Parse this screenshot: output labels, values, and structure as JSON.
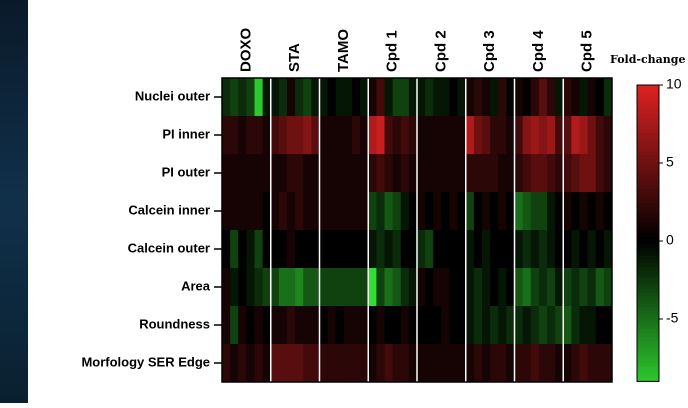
{
  "chart_data": {
    "type": "heatmap",
    "groups": [
      "DOXO",
      "STA",
      "TAMO",
      "Cpd 1",
      "Cpd 2",
      "Cpd 3",
      "Cpd 4",
      "Cpd 5"
    ],
    "rows": [
      "Nuclei outer",
      "PI inner",
      "PI outer",
      "Calcein inner",
      "Calcein outer",
      "Area",
      "Roundness",
      "Morfology SER Edge"
    ],
    "values": [
      [
        -2,
        -3,
        -2,
        -3,
        -9,
        -1,
        -1,
        -2,
        1,
        -2,
        -3,
        -1,
        -1,
        0,
        -1,
        -1,
        0,
        -1,
        1,
        3,
        -1,
        -3,
        -3,
        -1,
        -1,
        -2,
        -1,
        -1,
        0,
        -1,
        1,
        2,
        1,
        -1,
        2,
        0,
        1,
        0,
        2,
        4,
        2,
        -1,
        2,
        1,
        -1,
        1,
        0,
        -2
      ],
      [
        2,
        2,
        1,
        2,
        2,
        1,
        3,
        4,
        5,
        5,
        6,
        4,
        1,
        1,
        1,
        1,
        2,
        1,
        8,
        9,
        3,
        2,
        3,
        2,
        1,
        1,
        1,
        1,
        1,
        1,
        8,
        5,
        4,
        2,
        2,
        1,
        3,
        6,
        7,
        6,
        7,
        3,
        4,
        8,
        7,
        5,
        3,
        2
      ],
      [
        1,
        1,
        1,
        1,
        1,
        1,
        1,
        1,
        2,
        2,
        1,
        1,
        1,
        1,
        1,
        1,
        1,
        1,
        2,
        3,
        2,
        1,
        2,
        1,
        1,
        1,
        1,
        1,
        1,
        1,
        2,
        2,
        2,
        2,
        1,
        1,
        2,
        3,
        4,
        4,
        3,
        2,
        3,
        4,
        5,
        5,
        3,
        2
      ],
      [
        1,
        1,
        1,
        1,
        1,
        0,
        1,
        2,
        1,
        2,
        1,
        1,
        1,
        1,
        1,
        1,
        1,
        1,
        -3,
        -2,
        -4,
        -3,
        -1,
        0,
        1,
        0,
        1,
        0,
        1,
        0,
        -3,
        0,
        1,
        0,
        1,
        0,
        -5,
        -4,
        -3,
        -3,
        -1,
        0,
        1,
        0,
        1,
        0,
        1,
        0
      ],
      [
        0,
        -3,
        0,
        -1,
        -3,
        0,
        0,
        0,
        1,
        0,
        0,
        0,
        0,
        0,
        0,
        0,
        0,
        0,
        -1,
        -2,
        -1,
        -2,
        0,
        0,
        -2,
        -3,
        0,
        0,
        0,
        0,
        -1,
        0,
        -1,
        0,
        0,
        0,
        -1,
        -2,
        -1,
        -2,
        -1,
        0,
        0,
        -1,
        0,
        -1,
        0,
        -1
      ],
      [
        1,
        -1,
        0,
        -1,
        -2,
        -3,
        -3,
        -5,
        -5,
        -6,
        -4,
        -4,
        -3,
        -3,
        -3,
        -3,
        -3,
        -3,
        -10,
        -3,
        -5,
        -4,
        -2,
        -1,
        1,
        0,
        1,
        1,
        0,
        0,
        -1,
        -2,
        -1,
        0,
        -1,
        0,
        -4,
        -5,
        -3,
        -2,
        -3,
        -1,
        -3,
        -2,
        -3,
        -2,
        -4,
        -3
      ],
      [
        1,
        -3,
        1,
        0,
        1,
        0,
        1,
        1,
        2,
        1,
        1,
        1,
        0,
        1,
        0,
        1,
        1,
        1,
        0,
        1,
        0,
        0,
        1,
        0,
        0,
        0,
        0,
        1,
        0,
        0,
        -1,
        -2,
        -1,
        -2,
        -1,
        -2,
        -2,
        -1,
        -2,
        -3,
        -2,
        -3,
        -4,
        -2,
        -1,
        -1,
        0,
        0
      ],
      [
        2,
        1,
        2,
        1,
        2,
        1,
        4,
        4,
        4,
        4,
        3,
        3,
        2,
        2,
        2,
        2,
        2,
        2,
        1,
        2,
        3,
        2,
        2,
        1,
        1,
        1,
        1,
        1,
        1,
        1,
        1,
        2,
        1,
        2,
        2,
        1,
        2,
        2,
        3,
        2,
        2,
        1,
        1,
        2,
        3,
        2,
        2,
        2
      ]
    ],
    "colorbar_title": "Fold-change",
    "zlim": [
      -9,
      10
    ],
    "zticks": [
      -5,
      0,
      5,
      10
    ],
    "low_color": "#33dd33",
    "mid_color": "#000000",
    "high_color": "#dd2222"
  }
}
